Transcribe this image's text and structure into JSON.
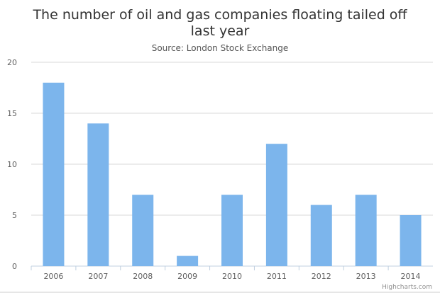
{
  "chart_data": {
    "type": "bar",
    "title_lines": [
      "The number of oil and gas companies floating tailed off",
      "last year"
    ],
    "subtitle": "Source: London Stock Exchange",
    "categories": [
      "2006",
      "2007",
      "2008",
      "2009",
      "2010",
      "2011",
      "2012",
      "2013",
      "2014"
    ],
    "values": [
      18,
      14,
      7,
      1,
      7,
      12,
      6,
      7,
      5
    ],
    "yticks": [
      "0",
      "5",
      "10",
      "15",
      "20"
    ],
    "ytick_values": [
      0,
      5,
      10,
      15,
      20
    ],
    "ylim": [
      0,
      20
    ],
    "xlabel": "",
    "ylabel": "",
    "grid": true,
    "legend": "none",
    "bar_color": "#7cb5ec",
    "credit": "Highcharts.com"
  }
}
